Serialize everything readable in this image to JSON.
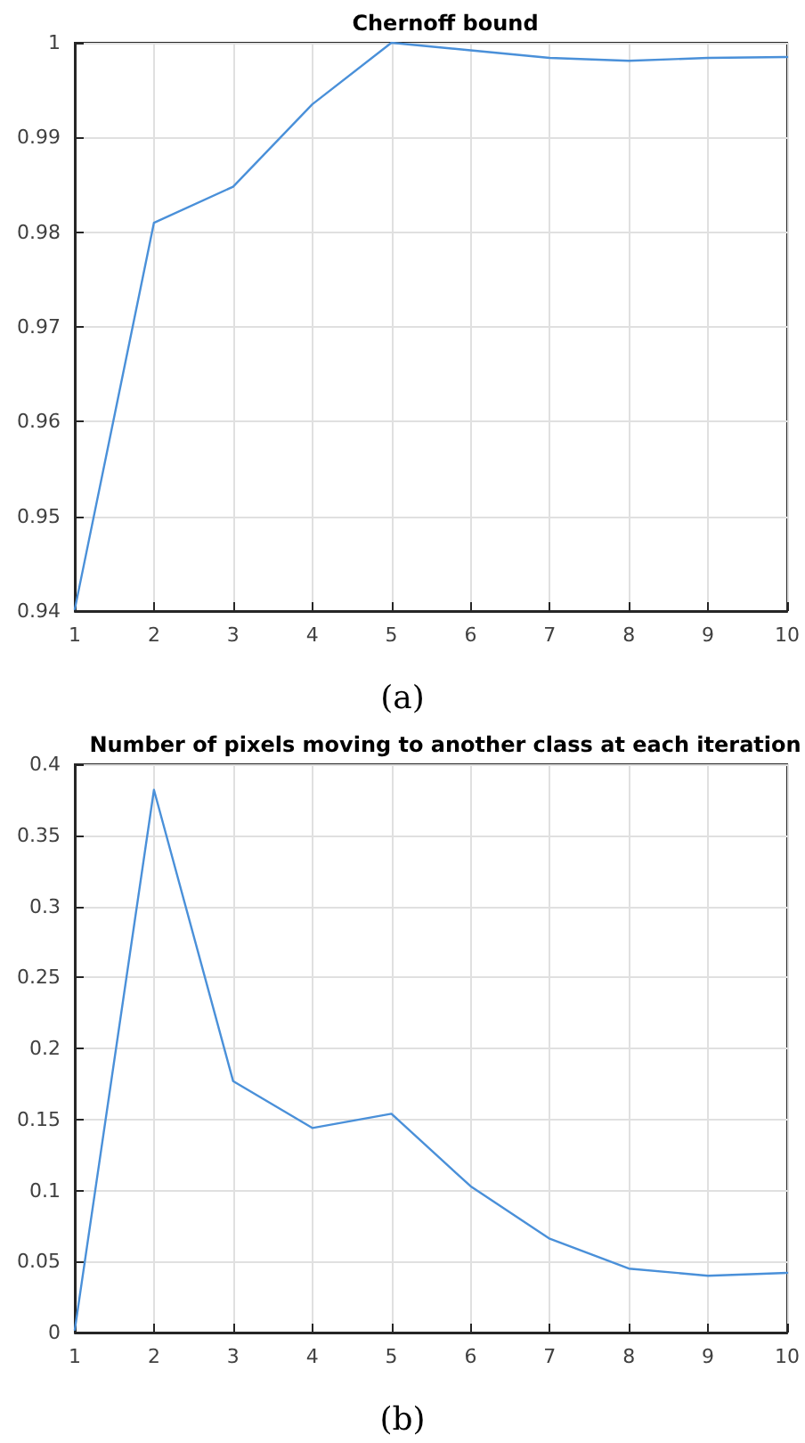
{
  "chart_data": [
    {
      "type": "line",
      "title": "Chernoff bound",
      "x": [
        1,
        2,
        3,
        4,
        5,
        6,
        7,
        8,
        9,
        10
      ],
      "series": [
        {
          "color": "#4a90d9",
          "values": [
            0.9402,
            0.981,
            0.9848,
            0.9935,
            1.0,
            0.9992,
            0.9984,
            0.9981,
            0.9984,
            0.9985
          ]
        }
      ],
      "xlim": [
        1,
        10
      ],
      "xticks": [
        1,
        2,
        3,
        4,
        5,
        6,
        7,
        8,
        9,
        10
      ],
      "ylim": [
        0.94,
        1
      ],
      "yticks": [
        0.94,
        0.95,
        0.96,
        0.97,
        0.98,
        0.99,
        1
      ],
      "grid": true,
      "marker": "none",
      "line_style": "solid",
      "annotations": [
        "(a)"
      ]
    },
    {
      "type": "line",
      "title": "Number of pixels moving to another class at each iteration",
      "x": [
        1,
        2,
        3,
        4,
        5,
        6,
        7,
        8,
        9,
        10
      ],
      "series": [
        {
          "color": "#4a90d9",
          "values": [
            0.002,
            0.382,
            0.177,
            0.144,
            0.154,
            0.103,
            0.066,
            0.045,
            0.04,
            0.042
          ]
        }
      ],
      "xlim": [
        1,
        10
      ],
      "xticks": [
        1,
        2,
        3,
        4,
        5,
        6,
        7,
        8,
        9,
        10
      ],
      "ylim": [
        0,
        0.4
      ],
      "yticks": [
        0,
        0.05,
        0.1,
        0.15,
        0.2,
        0.25,
        0.3,
        0.35,
        0.4
      ],
      "grid": true,
      "marker": "none",
      "line_style": "solid",
      "annotations": [
        "(b)"
      ]
    }
  ]
}
